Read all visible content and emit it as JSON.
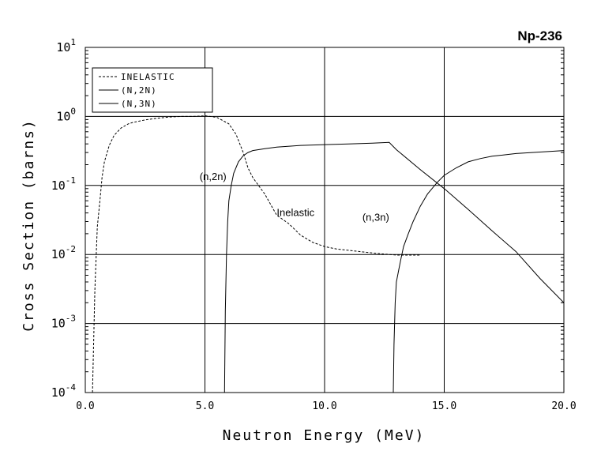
{
  "chart_data": {
    "type": "line",
    "title": "Np-236",
    "xlabel": "Neutron Energy (MeV)",
    "ylabel": "Cross Section (barns)",
    "x_scale": "linear",
    "y_scale": "log",
    "xlim": [
      0,
      20
    ],
    "ylim": [
      0.0001,
      10
    ],
    "x_ticks": [
      {
        "value": 0,
        "label": "0.0"
      },
      {
        "value": 5,
        "label": "5.0"
      },
      {
        "value": 10,
        "label": "10.0"
      },
      {
        "value": 15,
        "label": "15.0"
      },
      {
        "value": 20,
        "label": "20.0"
      }
    ],
    "y_ticks": [
      {
        "value": 10,
        "base": "10",
        "exp": "1"
      },
      {
        "value": 1,
        "base": "10",
        "exp": "0"
      },
      {
        "value": 0.1,
        "base": "10",
        "exp": "-1"
      },
      {
        "value": 0.01,
        "base": "10",
        "exp": "-2"
      },
      {
        "value": 0.001,
        "base": "10",
        "exp": "-3"
      },
      {
        "value": 0.0001,
        "base": "10",
        "exp": "-4"
      }
    ],
    "grid": true,
    "legend_position": "top-left",
    "series": [
      {
        "name": "INELASTIC",
        "style": "dashed",
        "x": [
          0.3,
          0.4,
          0.5,
          0.6,
          0.7,
          0.8,
          1.0,
          1.2,
          1.5,
          1.8,
          2.0,
          2.5,
          3.0,
          3.5,
          4.0,
          4.5,
          5.0,
          5.5,
          6.0,
          6.3,
          6.6,
          6.8,
          7.0,
          7.5,
          8.0,
          8.5,
          9.0,
          9.5,
          10.0,
          10.5,
          11.0,
          12.0,
          13.0,
          14.0
        ],
        "y": [
          0.0001,
          0.003,
          0.025,
          0.055,
          0.13,
          0.22,
          0.38,
          0.53,
          0.68,
          0.78,
          0.82,
          0.89,
          0.94,
          0.98,
          1.0,
          1.0,
          1.02,
          0.97,
          0.78,
          0.55,
          0.3,
          0.18,
          0.13,
          0.075,
          0.037,
          0.028,
          0.019,
          0.015,
          0.013,
          0.012,
          0.0115,
          0.0105,
          0.0098,
          0.0098
        ]
      },
      {
        "name": "(N,2N)",
        "style": "solid",
        "x": [
          5.82,
          5.85,
          5.9,
          5.95,
          6.0,
          6.1,
          6.2,
          6.4,
          6.6,
          6.8,
          7.0,
          7.5,
          8.0,
          9.0,
          10.0,
          11.0,
          12.0,
          12.7,
          13.0,
          14.0,
          15.0,
          16.0,
          17.0,
          18.0,
          19.0,
          20.0
        ],
        "y": [
          0.0001,
          0.0015,
          0.01,
          0.03,
          0.06,
          0.1,
          0.15,
          0.22,
          0.27,
          0.3,
          0.32,
          0.34,
          0.36,
          0.38,
          0.39,
          0.4,
          0.41,
          0.42,
          0.33,
          0.17,
          0.09,
          0.045,
          0.022,
          0.011,
          0.0045,
          0.002
        ]
      },
      {
        "name": "(N,3N)",
        "style": "solid",
        "x": [
          12.87,
          12.9,
          12.95,
          13.0,
          13.1,
          13.2,
          13.3,
          13.5,
          13.7,
          14.0,
          14.3,
          14.7,
          15.0,
          15.5,
          16.0,
          16.5,
          17.0,
          18.0,
          19.0,
          20.0
        ],
        "y": [
          0.0001,
          0.0005,
          0.002,
          0.004,
          0.006,
          0.009,
          0.013,
          0.02,
          0.03,
          0.05,
          0.075,
          0.11,
          0.14,
          0.18,
          0.22,
          0.245,
          0.265,
          0.29,
          0.305,
          0.32
        ]
      }
    ],
    "annotations": [
      {
        "text": "(n,2n)",
        "x": 5.9,
        "y": 0.12
      },
      {
        "text": "Inelastic",
        "x": 8.0,
        "y": 0.036
      },
      {
        "text": "(n,3n)",
        "x": 12.7,
        "y": 0.031
      }
    ]
  },
  "legend": {
    "items": [
      {
        "label": "INELASTIC",
        "style": "dashed"
      },
      {
        "label": "(N,2N)",
        "style": "solid"
      },
      {
        "label": "(N,3N)",
        "style": "solid"
      }
    ]
  }
}
